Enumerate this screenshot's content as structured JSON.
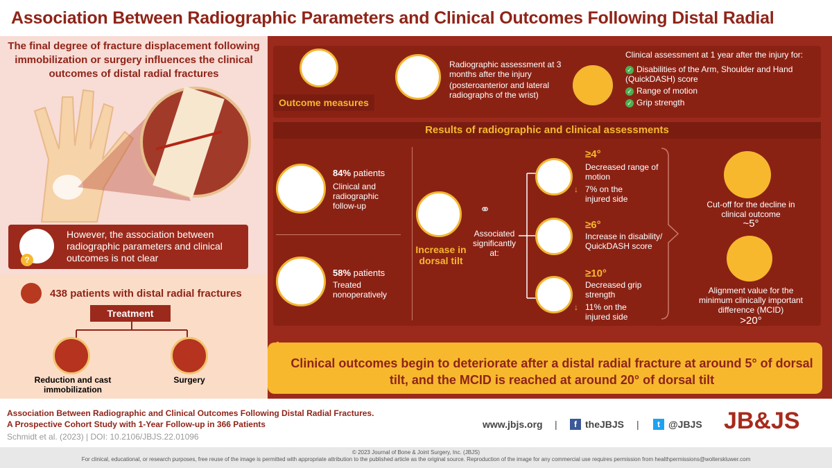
{
  "title": "Association Between Radiographic Parameters and Clinical Outcomes Following Distal Radial Fractures",
  "intro": "The final degree of fracture displacement following immobilization or surgery influences the clinical outcomes of distal radial fractures",
  "however": "However, the association between radiographic parameters and clinical outcomes is not clear",
  "however_icon_symbol": "?",
  "patients": "438 patients with distal radial fractures",
  "treatment": "Treatment",
  "option1": "Reduction and cast immobilization",
  "option2": "Surgery",
  "outcome": {
    "label": "Outcome measures",
    "radiographic": "Radiographic assessment at 3 months after the injury",
    "radiographic_sub": "(posteroanterior and lateral radiographs of the wrist)",
    "clinical_head": "Clinical assessment at 1 year after the injury for:",
    "clinical_items": [
      "Disabilities of the Arm, Shoulder and Hand (QuickDASH) score",
      "Range of motion",
      "Grip strength"
    ]
  },
  "results": {
    "head": "Results of radiographic and clinical assessments",
    "p1_pct": "84%",
    "p1_word": " patients",
    "p1_desc": "Clinical and radiographic follow-up",
    "p2_pct": "58%",
    "p2_word": " patients",
    "p2_desc": "Treated nonoperatively",
    "tilt": "Increase in dorsal tilt",
    "assoc": "Associated significantly at:",
    "b1_val": "≥4°",
    "b1_desc": "Decreased range of motion",
    "b1_sub": "7% on the injured side",
    "b2_val": "≥6°",
    "b2_desc": "Increase in disability/ QuickDASH score",
    "b3_val": "≥10°",
    "b3_desc": "Decreased grip strength",
    "b3_sub": "11% on the injured side",
    "arrow": "↓",
    "cut": "Cut-off for the decline in clinical outcome",
    "cut_val": "~5°",
    "mcid": "Alignment value for the minimum clinically important difference (MCID)",
    "mcid_val": ">20°"
  },
  "conclusion": "Clinical outcomes begin to deteriorate after a distal radial fracture at around 5° of dorsal tilt, and the MCID is reached at around 20° of dorsal tilt",
  "footer": {
    "ref1": "Association Between Radiographic and Clinical Outcomes Following Distal Radial Fractures.",
    "ref2": "A Prospective Cohort Study with 1-Year Follow-up in 366 Patients",
    "ref3": "Schmidt et al. (2023) | DOI: 10.2106/JBJS.22.01096",
    "web": "www.jbjs.org",
    "sep": "|",
    "fb": "theJBJS",
    "fb_icon": "f",
    "tw": "@JBJS",
    "tw_icon": "t",
    "logo": "JB&JS",
    "copyright": "© 2023 Journal of Bone & Joint Surgery, Inc. (JBJS)",
    "license": "For clinical, educational, or research purposes, free reuse of the image is permitted with appropriate attribution to the published article as the original source. Reproduction of the image for any commercial use requires permission from healthpermissions@wolterskluwer.com"
  },
  "colors": {
    "brand": "#8f2418",
    "accent": "#f7b82e",
    "panel": "#9b2a1c"
  }
}
